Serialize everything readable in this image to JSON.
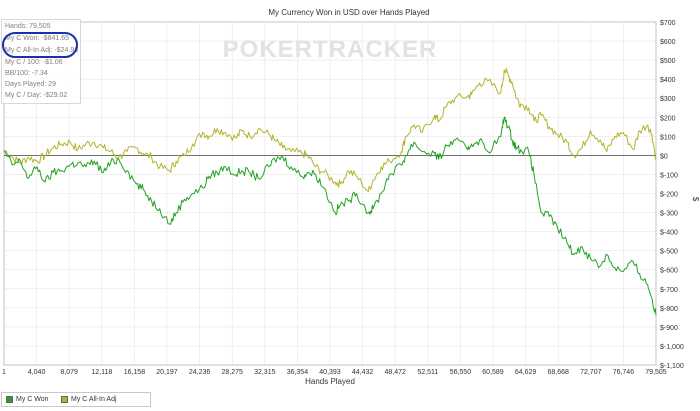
{
  "chart_data": {
    "type": "line",
    "title": "My Currency Won in USD over Hands Played",
    "xlabel": "Hands Played",
    "ylabel": "$",
    "xlim": [
      1,
      79505
    ],
    "ylim": [
      -1100,
      700
    ],
    "x_ticks": [
      "1",
      "4,040",
      "8,079",
      "12,118",
      "16,158",
      "20,197",
      "24,236",
      "28,275",
      "32,315",
      "36,354",
      "40,393",
      "44,432",
      "48,472",
      "52,511",
      "56,550",
      "60,589",
      "64,629",
      "68,668",
      "72,707",
      "76,746",
      "79,505"
    ],
    "y_ticks": [
      "$700",
      "$600",
      "$500",
      "$400",
      "$300",
      "$200",
      "$100",
      "$0",
      "$-100",
      "$-200",
      "$-300",
      "$-400",
      "$-500",
      "$-600",
      "$-700",
      "$-800",
      "$-900",
      "$-1,000",
      "$-1,100"
    ],
    "grid": true,
    "legend_position": "bottom-left",
    "watermark": "POKERTRACKER",
    "series": [
      {
        "name": "My C Won",
        "color": "#22a222",
        "x": [
          1,
          1000,
          2000,
          3000,
          4040,
          5000,
          6000,
          7000,
          8079,
          9000,
          10000,
          11000,
          12118,
          13000,
          14000,
          15000,
          16158,
          17000,
          18000,
          19000,
          20197,
          21000,
          22000,
          23000,
          24236,
          25000,
          26000,
          27000,
          28275,
          29000,
          30000,
          31000,
          32315,
          33000,
          34000,
          35000,
          36354,
          37000,
          38000,
          39000,
          40393,
          41000,
          42000,
          43000,
          44432,
          45000,
          46000,
          47000,
          48472,
          49000,
          50000,
          51000,
          52511,
          53000,
          54000,
          55000,
          56550,
          57000,
          58000,
          59000,
          60589,
          61000,
          61500,
          62000,
          62500,
          63000,
          64000,
          64629,
          65500,
          66500,
          67500,
          68668,
          69500,
          70500,
          71500,
          72707,
          73500,
          74500,
          75500,
          76746,
          77500,
          78500,
          79000,
          79505
        ],
        "values": [
          20,
          -50,
          -30,
          -120,
          -60,
          -140,
          -90,
          -80,
          -50,
          -40,
          -60,
          -30,
          -90,
          -40,
          -20,
          -80,
          -150,
          -180,
          -240,
          -280,
          -360,
          -300,
          -230,
          -200,
          -170,
          -110,
          -90,
          -60,
          -100,
          -80,
          -90,
          -120,
          -60,
          -20,
          -10,
          -60,
          -110,
          -90,
          -100,
          -170,
          -300,
          -260,
          -240,
          -200,
          -300,
          -280,
          -200,
          -100,
          -50,
          0,
          70,
          20,
          10,
          -20,
          50,
          80,
          30,
          60,
          80,
          20,
          100,
          200,
          150,
          80,
          40,
          30,
          20,
          -100,
          -300,
          -320,
          -380,
          -460,
          -520,
          -480,
          -540,
          -580,
          -520,
          -590,
          -610,
          -560,
          -620,
          -680,
          -750,
          -840
        ]
      },
      {
        "name": "My C All-In Adj",
        "color": "#b3b32d",
        "x": [
          1,
          1000,
          2000,
          3000,
          4040,
          5000,
          6000,
          7000,
          8079,
          9000,
          10000,
          11000,
          12118,
          13000,
          14000,
          15000,
          16158,
          17000,
          18000,
          19000,
          20197,
          21000,
          22000,
          23000,
          24236,
          25000,
          26000,
          27000,
          28275,
          29000,
          30000,
          31000,
          32315,
          33000,
          34000,
          35000,
          36354,
          37000,
          38000,
          39000,
          40393,
          41000,
          42000,
          43000,
          44432,
          45000,
          46000,
          47000,
          48472,
          49000,
          50000,
          51000,
          52511,
          53000,
          54000,
          55000,
          56550,
          57000,
          58000,
          59000,
          60589,
          61000,
          61500,
          62000,
          62500,
          63000,
          64000,
          64629,
          65500,
          66500,
          67500,
          68668,
          69500,
          70500,
          71500,
          72707,
          73500,
          74500,
          75500,
          76746,
          77500,
          78500,
          79000,
          79505
        ],
        "values": [
          30,
          -10,
          -40,
          -10,
          -30,
          0,
          40,
          60,
          70,
          30,
          60,
          70,
          40,
          20,
          -10,
          20,
          40,
          10,
          -10,
          -60,
          -80,
          -30,
          0,
          60,
          120,
          100,
          140,
          120,
          90,
          130,
          100,
          140,
          110,
          80,
          40,
          20,
          10,
          0,
          -60,
          -90,
          -140,
          -150,
          -80,
          -110,
          -190,
          -130,
          -60,
          -30,
          20,
          100,
          160,
          120,
          210,
          180,
          260,
          300,
          310,
          320,
          380,
          390,
          330,
          450,
          420,
          380,
          300,
          270,
          250,
          180,
          210,
          150,
          110,
          70,
          0,
          40,
          130,
          80,
          20,
          100,
          120,
          30,
          130,
          160,
          110,
          -20
        ]
      }
    ]
  },
  "stats": [
    "Hands: 79,505",
    "My C Won: -$841.65",
    "My C All-In Adj: -$24.98",
    "My C / 100: -$1.06",
    "BB/100: -7.34",
    "Days Played: 29",
    "My C / Day: -$29.02"
  ],
  "legend": [
    {
      "label": "My C Won",
      "color": "#22a222"
    },
    {
      "label": "My C All-In Adj",
      "color": "#b3b32d"
    }
  ]
}
